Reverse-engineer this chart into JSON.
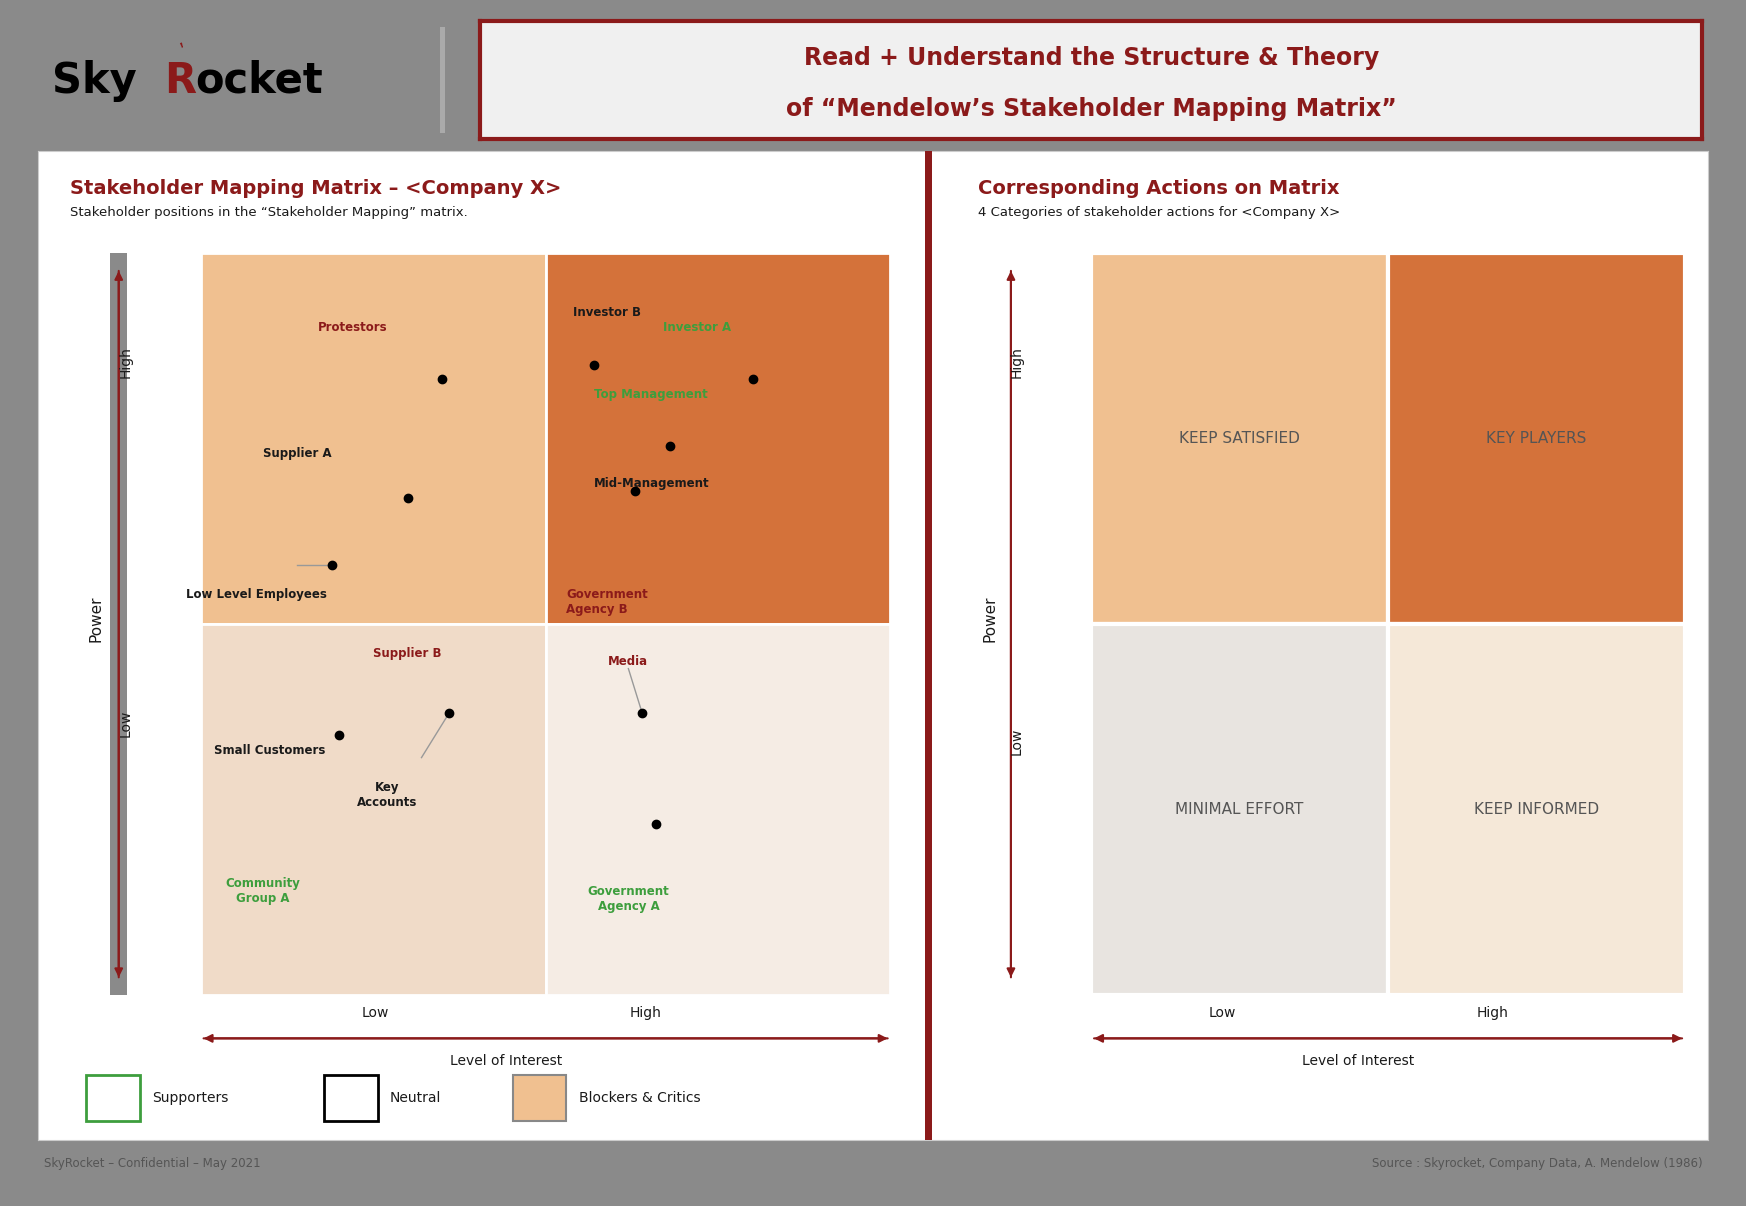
{
  "bg_color": "#8a8a8a",
  "white_bg": "#ffffff",
  "title_text1": "Read + Understand the Structure & Theory",
  "title_text2": "of “Mendelow’s Stakeholder Mapping Matrix”",
  "title_color": "#8b1a1a",
  "title_box_border": "#8b1a1a",
  "title_box_bg": "#f0f0f0",
  "left_title": "Stakeholder Mapping Matrix – <Company X>",
  "left_subtitle": "Stakeholder positions in the “Stakeholder Mapping” matrix.",
  "right_title": "Corresponding Actions on Matrix",
  "right_subtitle": "4 Categories of stakeholder actions for <Company X>",
  "red_color": "#8b1a1a",
  "green_color": "#3d9e3d",
  "black_color": "#1a1a1a",
  "gray_color": "#555555",
  "quad_ll_color": "#f0dbc8",
  "quad_lr_color": "#f5ece4",
  "quad_ul_color": "#f0c090",
  "quad_ur_color": "#d4723a",
  "rq_ul_color": "#f0c090",
  "rq_ur_color": "#d4723a",
  "rq_ll_color": "#e8e4e0",
  "rq_lr_color": "#f5e8d8",
  "footer_left": "SkyRocket – Confidential – May 2021",
  "footer_right": "Source : Skyrocket, Company Data, A. Mendelow (1986)"
}
